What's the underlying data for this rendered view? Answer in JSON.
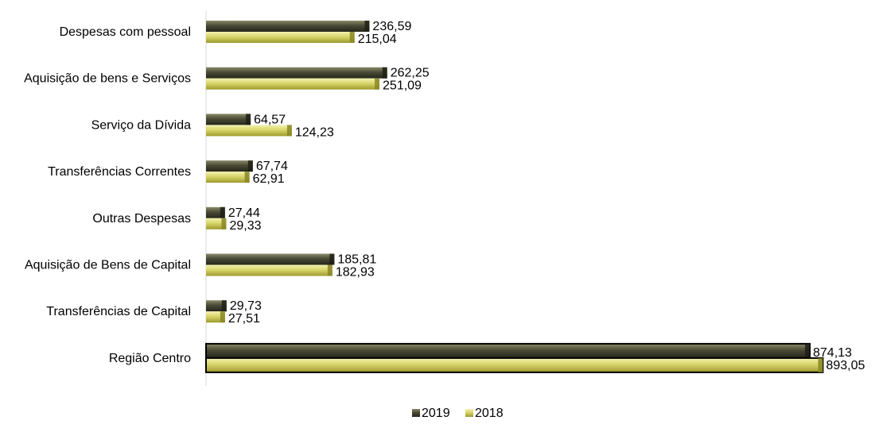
{
  "chart_data": {
    "type": "bar",
    "orientation": "horizontal",
    "categories": [
      "Despesas com pessoal",
      "Aquisição de bens e Serviços",
      "Serviço da Dívida",
      "Transferências Correntes",
      "Outras Despesas",
      "Aquisição de Bens de Capital",
      "Transferências de Capital",
      "Região Centro"
    ],
    "series": [
      {
        "name": "2019",
        "color": "#4a4a36",
        "values": [
          236.59,
          262.25,
          64.57,
          67.74,
          27.44,
          185.81,
          29.73,
          874.13
        ],
        "labels": [
          "236,59",
          "262,25",
          "64,57",
          "67,74",
          "27,44",
          "185,81",
          "29,73",
          "874,13"
        ]
      },
      {
        "name": "2018",
        "color": "#d8d56a",
        "values": [
          215.04,
          251.09,
          124.23,
          62.91,
          29.33,
          182.93,
          27.51,
          893.05
        ],
        "labels": [
          "215,04",
          "251,09",
          "124,23",
          "62,91",
          "29,33",
          "182,93",
          "27,51",
          "893,05"
        ]
      }
    ],
    "xlim": [
      0,
      960
    ],
    "grid": false,
    "legend_position": "bottom-center"
  }
}
